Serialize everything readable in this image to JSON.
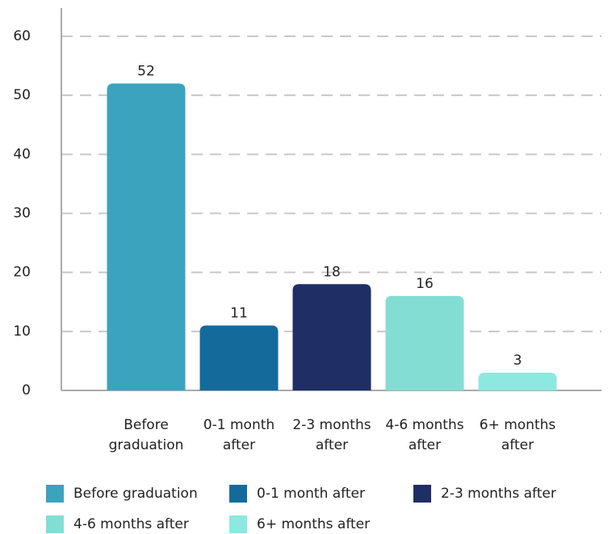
{
  "chart_data": {
    "type": "bar",
    "categories": [
      "Before graduation",
      "0-1 month after",
      "2-3 months after",
      "4-6 months after",
      "6+ months after"
    ],
    "values": [
      52,
      11,
      18,
      16,
      3
    ],
    "colors": [
      "#3ba3bd",
      "#146b9b",
      "#1f2e64",
      "#84ddd3",
      "#8de8e0"
    ],
    "ylim": [
      0,
      60
    ],
    "yticks": [
      0,
      10,
      20,
      30,
      40,
      50,
      60
    ],
    "grid": true,
    "legend": "bottom"
  }
}
